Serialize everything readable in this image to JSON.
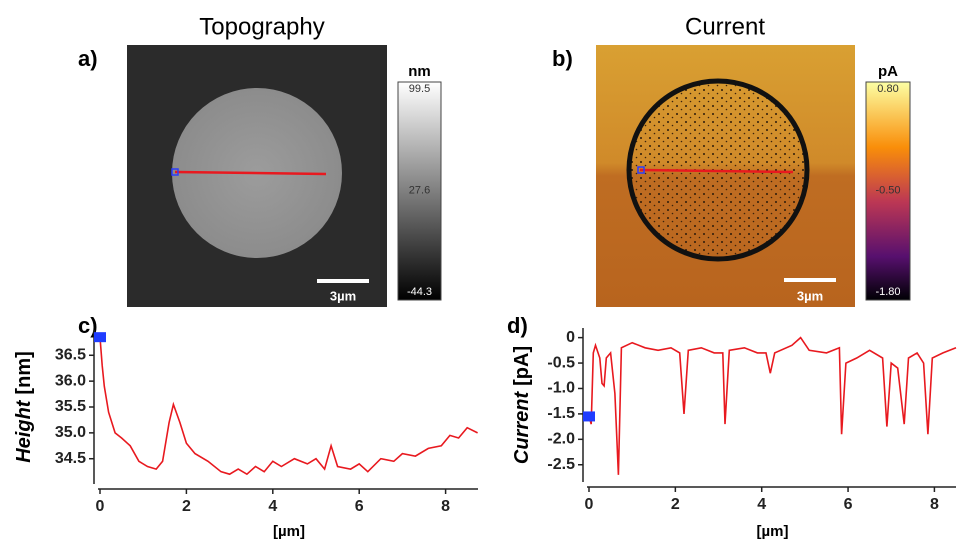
{
  "panels": [
    {
      "label": "a)",
      "title": "Topography",
      "unit": "nm",
      "clim": [
        -44.3,
        99.5
      ],
      "cticks": [
        99.5,
        27.6,
        -44.3
      ],
      "scale_bar": "3µm"
    },
    {
      "label": "b)",
      "title": "Current",
      "unit": "pA",
      "clim": [
        -1.8,
        0.8
      ],
      "cticks": [
        {
          "value": 0.8,
          "label": "0.80"
        },
        {
          "value": -0.5,
          "label": "-0.50"
        },
        {
          "value": -1.8,
          "label": "-1.80"
        }
      ],
      "scale_bar": "3µm"
    }
  ],
  "chart_data": [
    {
      "type": "line",
      "panel": "c)",
      "xlabel": "[µm]",
      "ylabel": [
        "Height",
        "[nm]"
      ],
      "color": "#e8191f",
      "xlim": [
        0,
        8.75
      ],
      "ylim": [
        34.05,
        36.95
      ],
      "xticks": [
        0,
        2,
        4,
        6,
        8
      ],
      "yticks": [
        34.5,
        {
          "value": 35,
          "label": "35.0"
        },
        35.5,
        {
          "value": 36,
          "label": "36.0"
        },
        36.5
      ],
      "x": [
        0,
        0.05,
        0.1,
        0.2,
        0.35,
        0.5,
        0.7,
        0.9,
        1.1,
        1.3,
        1.45,
        1.6,
        1.7,
        1.85,
        2.0,
        2.2,
        2.5,
        2.8,
        3.0,
        3.2,
        3.4,
        3.6,
        3.8,
        4.0,
        4.2,
        4.5,
        4.8,
        5.0,
        5.2,
        5.35,
        5.5,
        5.8,
        6.0,
        6.2,
        6.5,
        6.8,
        7.0,
        7.3,
        7.6,
        7.9,
        8.1,
        8.3,
        8.5,
        8.74
      ],
      "values": [
        36.85,
        36.3,
        35.9,
        35.4,
        35.0,
        34.9,
        34.75,
        34.45,
        34.35,
        34.3,
        34.45,
        35.2,
        35.55,
        35.2,
        34.8,
        34.6,
        34.45,
        34.25,
        34.2,
        34.3,
        34.2,
        34.35,
        34.25,
        34.45,
        34.35,
        34.5,
        34.4,
        34.5,
        34.3,
        34.75,
        34.35,
        34.3,
        34.4,
        34.25,
        34.5,
        34.45,
        34.6,
        34.55,
        34.7,
        34.75,
        34.95,
        34.9,
        35.1,
        35.0
      ],
      "marker": {
        "x": 0,
        "y": 36.85
      }
    },
    {
      "type": "line",
      "panel": "d)",
      "xlabel": "[µm]",
      "ylabel": [
        "Current",
        "[pA]"
      ],
      "color": "#e8191f",
      "xlim": [
        0,
        8.5
      ],
      "ylim": [
        -2.8,
        0.15
      ],
      "xticks": [
        0,
        2,
        4,
        6,
        8
      ],
      "yticks": [
        0,
        -0.5,
        {
          "value": -1,
          "label": "-1.0"
        },
        -1.5,
        {
          "value": -2,
          "label": "-2.0"
        },
        -2.5
      ],
      "x": [
        0,
        0.05,
        0.1,
        0.15,
        0.25,
        0.3,
        0.35,
        0.4,
        0.5,
        0.6,
        0.68,
        0.75,
        1.0,
        1.3,
        1.6,
        1.9,
        2.1,
        2.2,
        2.3,
        2.6,
        2.9,
        3.1,
        3.15,
        3.25,
        3.6,
        3.9,
        4.1,
        4.2,
        4.3,
        4.7,
        4.9,
        5.1,
        5.5,
        5.8,
        5.85,
        5.95,
        6.2,
        6.5,
        6.8,
        6.9,
        7.0,
        7.15,
        7.3,
        7.4,
        7.6,
        7.75,
        7.85,
        7.95,
        8.2,
        8.5
      ],
      "values": [
        -1.55,
        -1.7,
        -0.3,
        -0.15,
        -0.4,
        -0.9,
        -0.95,
        -0.4,
        -0.3,
        -1.1,
        -2.7,
        -0.2,
        -0.1,
        -0.2,
        -0.25,
        -0.2,
        -0.3,
        -1.5,
        -0.25,
        -0.2,
        -0.3,
        -0.3,
        -1.7,
        -0.25,
        -0.2,
        -0.3,
        -0.3,
        -0.7,
        -0.3,
        -0.15,
        0,
        -0.25,
        -0.3,
        -0.2,
        -1.9,
        -0.5,
        -0.4,
        -0.25,
        -0.4,
        -1.75,
        -0.5,
        -0.6,
        -1.7,
        -0.4,
        -0.3,
        -0.5,
        -1.9,
        -0.4,
        -0.3,
        -0.2
      ],
      "marker": {
        "x": 0,
        "y": -1.55
      }
    }
  ]
}
